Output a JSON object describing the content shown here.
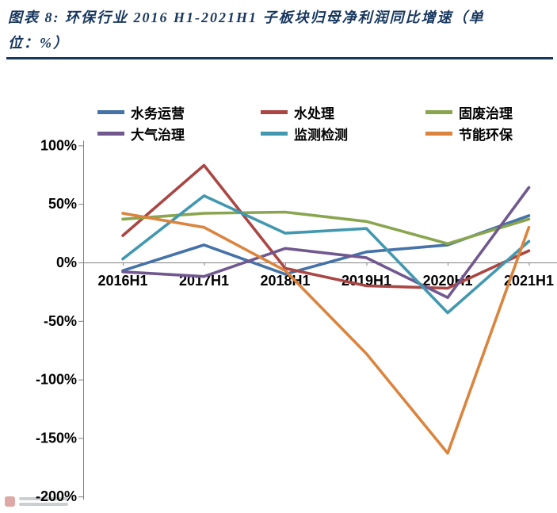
{
  "header": {
    "title_lines": [
      "图表 8:  环保行业 2016 H1-2021H1 子板块归母净利润同比增速（单",
      "位：%）"
    ]
  },
  "chart_data": {
    "type": "line",
    "title": "环保行业 2016 H1-2021H1 子板块归母净利润同比增速（单位：%）",
    "categories": [
      "2016H1",
      "2017H1",
      "2018H1",
      "2019H1",
      "2020H1",
      "2021H1"
    ],
    "series": [
      {
        "name": "水务运营",
        "color": "#4572A7",
        "values": [
          -7,
          15,
          -10,
          9,
          15,
          40
        ]
      },
      {
        "name": "水处理",
        "color": "#AA4643",
        "values": [
          23,
          83,
          -5,
          -20,
          -22,
          10
        ]
      },
      {
        "name": "固废治理",
        "color": "#89A54E",
        "values": [
          37,
          42,
          43,
          35,
          16,
          37
        ]
      },
      {
        "name": "大气治理",
        "color": "#71588F",
        "values": [
          -8,
          -12,
          12,
          4,
          -30,
          64
        ]
      },
      {
        "name": "监测检测",
        "color": "#4198AF",
        "values": [
          3,
          57,
          25,
          29,
          -43,
          18
        ]
      },
      {
        "name": "节能环保",
        "color": "#DB843D",
        "values": [
          42,
          30,
          -7,
          -78,
          -163,
          30
        ]
      }
    ],
    "y_ticks": [
      100,
      50,
      0,
      -50,
      -100,
      -150,
      -200
    ],
    "y_tick_labels": [
      "100%",
      "50%",
      "0%",
      "-50%",
      "-100%",
      "-150%",
      "-200%"
    ],
    "ylim": [
      -200,
      100
    ],
    "xlabel": "",
    "ylabel": "",
    "grid": false,
    "legend_position": "top"
  }
}
